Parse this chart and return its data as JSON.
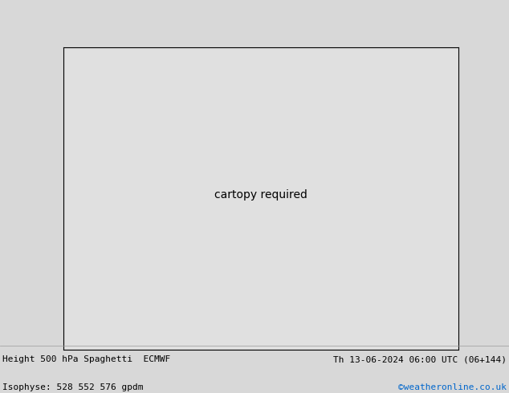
{
  "title_left": "Height 500 hPa Spaghetti  ECMWF",
  "title_right": "Th 13-06-2024 06:00 UTC (06+144)",
  "subtitle_left": "Isophyse: 528 552 576 gpdm",
  "subtitle_right": "©weatheronline.co.uk",
  "subtitle_right_color": "#0066cc",
  "background_color": "#d8d8d8",
  "land_color": "#c8f0c0",
  "ocean_color": "#e0e0e0",
  "border_color": "#888888",
  "text_color": "#000000",
  "figsize": [
    6.34,
    4.9
  ],
  "dpi": 100,
  "lon_min": 60,
  "lon_max": 230,
  "lat_min": -80,
  "lat_max": 10,
  "footer_fontsize": 8,
  "n_ensemble": 51,
  "contour_colors": [
    "#404040",
    "#606060",
    "#808080",
    "#a0a0a0",
    "#ff0000",
    "#cc0000",
    "#aa0000",
    "#ff6600",
    "#ff8800",
    "#ffaa00",
    "#dddd00",
    "#aacc00",
    "#88aa00",
    "#00aa00",
    "#00cc44",
    "#00ff88",
    "#00cccc",
    "#00aaff",
    "#0088ff",
    "#0044ff",
    "#0000cc",
    "#000088",
    "#8800cc",
    "#aa00ff",
    "#cc44ff",
    "#ff00ff",
    "#ff44cc",
    "#ff88aa",
    "#ff69b4",
    "#cc0088",
    "#880044"
  ],
  "line_width": 0.55
}
